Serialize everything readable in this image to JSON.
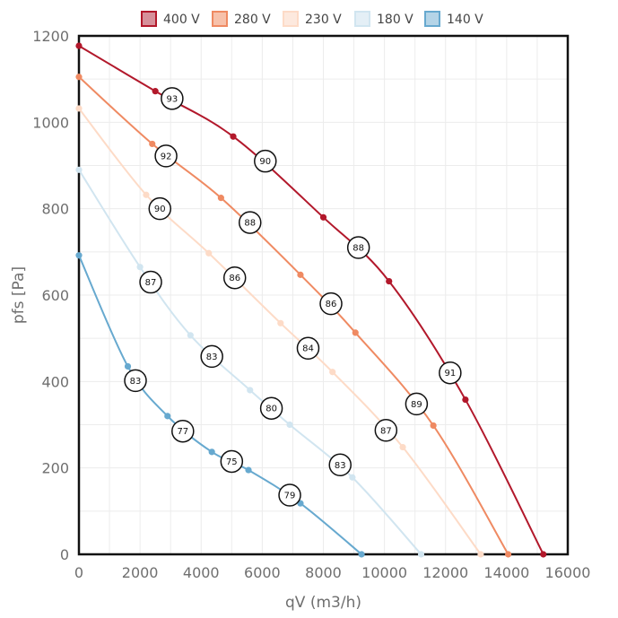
{
  "chart_data": {
    "type": "line",
    "xlabel": "qV (m3/h)",
    "ylabel": "pfs [Pa]",
    "xlim": [
      0,
      16000
    ],
    "ylim": [
      0,
      1200
    ],
    "x_ticks": [
      0,
      2000,
      4000,
      6000,
      8000,
      10000,
      12000,
      14000,
      16000
    ],
    "y_ticks": [
      0,
      200,
      400,
      600,
      800,
      1000,
      1200
    ],
    "grid": true,
    "legend_position": "top",
    "series": [
      {
        "name": "400 V",
        "color": "#b2182b",
        "fill": "#d6909a",
        "points": [
          [
            0,
            1177
          ],
          [
            2500,
            1072
          ],
          [
            5050,
            967
          ],
          [
            8000,
            780
          ],
          [
            10150,
            632
          ],
          [
            12650,
            358
          ],
          [
            15200,
            0
          ]
        ],
        "efficiency_labels": [
          {
            "x": 3050,
            "y": 1055,
            "text": "93"
          },
          {
            "x": 6100,
            "y": 910,
            "text": "90"
          },
          {
            "x": 9150,
            "y": 710,
            "text": "88"
          },
          {
            "x": 12150,
            "y": 420,
            "text": "91"
          }
        ]
      },
      {
        "name": "280 V",
        "color": "#ef8a62",
        "fill": "#f7c1aa",
        "points": [
          [
            0,
            1105
          ],
          [
            2400,
            950
          ],
          [
            4650,
            825
          ],
          [
            7250,
            647
          ],
          [
            9050,
            513
          ],
          [
            11600,
            298
          ],
          [
            14050,
            0
          ]
        ],
        "efficiency_labels": [
          {
            "x": 2850,
            "y": 922,
            "text": "92"
          },
          {
            "x": 5600,
            "y": 768,
            "text": "88"
          },
          {
            "x": 8250,
            "y": 580,
            "text": "86"
          },
          {
            "x": 11050,
            "y": 348,
            "text": "89"
          }
        ]
      },
      {
        "name": "230 V",
        "color": "#fddbc7",
        "fill": "#fde9de",
        "points": [
          [
            0,
            1032
          ],
          [
            2200,
            832
          ],
          [
            4250,
            697
          ],
          [
            6600,
            535
          ],
          [
            8300,
            422
          ],
          [
            10600,
            248
          ],
          [
            13150,
            0
          ]
        ],
        "efficiency_labels": [
          {
            "x": 2650,
            "y": 800,
            "text": "90"
          },
          {
            "x": 5100,
            "y": 640,
            "text": "86"
          },
          {
            "x": 7500,
            "y": 477,
            "text": "84"
          },
          {
            "x": 10050,
            "y": 287,
            "text": "87"
          }
        ]
      },
      {
        "name": "180 V",
        "color": "#d1e5f0",
        "fill": "#e4eff6",
        "points": [
          [
            0,
            890
          ],
          [
            2000,
            665
          ],
          [
            3650,
            507
          ],
          [
            5600,
            380
          ],
          [
            6900,
            300
          ],
          [
            8950,
            178
          ],
          [
            11200,
            0
          ]
        ],
        "efficiency_labels": [
          {
            "x": 2350,
            "y": 630,
            "text": "87"
          },
          {
            "x": 4350,
            "y": 458,
            "text": "83"
          },
          {
            "x": 6300,
            "y": 338,
            "text": "80"
          },
          {
            "x": 8550,
            "y": 207,
            "text": "83"
          }
        ]
      },
      {
        "name": "140 V",
        "color": "#67a9cf",
        "fill": "#b4d4e7",
        "points": [
          [
            0,
            692
          ],
          [
            1600,
            435
          ],
          [
            2900,
            320
          ],
          [
            4350,
            237
          ],
          [
            5550,
            195
          ],
          [
            7250,
            118
          ],
          [
            9250,
            0
          ]
        ],
        "efficiency_labels": [
          {
            "x": 1850,
            "y": 402,
            "text": "83"
          },
          {
            "x": 3400,
            "y": 285,
            "text": "77"
          },
          {
            "x": 5000,
            "y": 215,
            "text": "75"
          },
          {
            "x": 6900,
            "y": 137,
            "text": "79"
          }
        ]
      }
    ]
  }
}
